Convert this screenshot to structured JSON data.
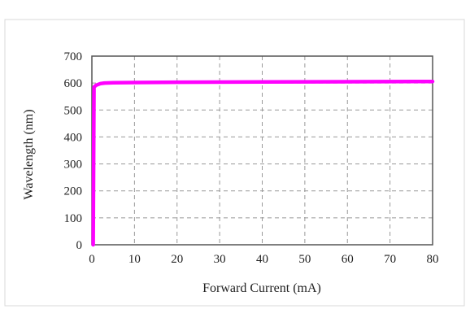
{
  "chart_data": {
    "type": "line",
    "title": "",
    "xlabel": "Forward Current (mA)",
    "ylabel": "Wavelength (nm)",
    "xlim": [
      0,
      80
    ],
    "ylim": [
      0,
      700
    ],
    "xticks": [
      "0",
      "10",
      "20",
      "30",
      "40",
      "50",
      "60",
      "70",
      "80"
    ],
    "yticks": [
      "0",
      "100",
      "200",
      "300",
      "400",
      "500",
      "600",
      "700"
    ],
    "grid": "dashed",
    "series": [
      {
        "color": "#ff00ff",
        "x": [
          0.3,
          0.5,
          1,
          2,
          3,
          5,
          10,
          20,
          40,
          60,
          80
        ],
        "y": [
          0,
          585,
          592,
          598,
          600,
          601,
          602,
          603,
          604,
          605,
          606
        ]
      }
    ]
  }
}
